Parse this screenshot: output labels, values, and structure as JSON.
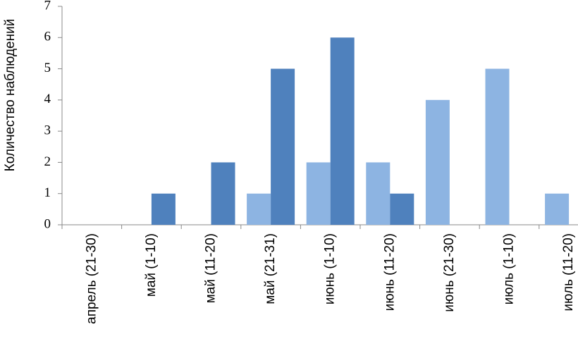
{
  "chart_data": {
    "type": "bar",
    "y_label": "Количество наблюдений",
    "categories": [
      "апрель (21-30)",
      "май (1-10)",
      "май (11-20)",
      "май (21-31)",
      "июнь (1-10)",
      "июнь (11-20)",
      "июнь (21-30)",
      "июль (1-10)",
      "июль (11-20)"
    ],
    "series": [
      {
        "color": "#8db4e2",
        "values": [
          0,
          0,
          0,
          1,
          2,
          2,
          4,
          5,
          1
        ]
      },
      {
        "color": "#4f81bd",
        "values": [
          0,
          1,
          2,
          5,
          6,
          1,
          0,
          0,
          0
        ]
      }
    ],
    "ylim": [
      0,
      7
    ],
    "yticks": [
      0,
      1,
      2,
      3,
      4,
      5,
      6,
      7
    ]
  }
}
